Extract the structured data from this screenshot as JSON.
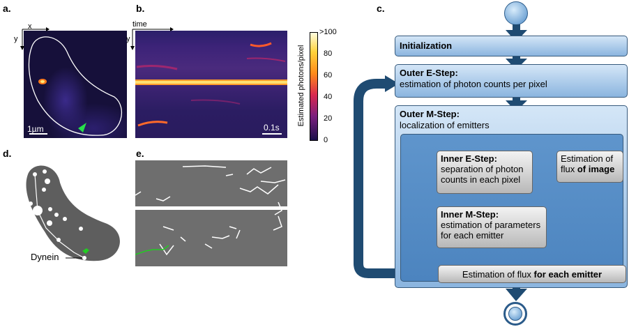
{
  "panels": {
    "a": {
      "label": "a.",
      "axis_x": "x",
      "axis_y": "y",
      "scale": "1µm"
    },
    "b": {
      "label": "b.",
      "axis_time": "time",
      "axis_y": "y",
      "scale": "0.1s"
    },
    "c": {
      "label": "c."
    },
    "d": {
      "label": "d.",
      "annotation": "Dynein"
    },
    "e": {
      "label": "e."
    }
  },
  "colorbar": {
    "label": "Estimated photons/pixel",
    "ticks": [
      ">100",
      "80",
      "60",
      "40",
      "20",
      "0"
    ]
  },
  "flowchart": {
    "init": "Initialization",
    "outer_e_title": "Outer E-Step:",
    "outer_e_text": "estimation of photon counts per pixel",
    "outer_m_title": "Outer M-Step:",
    "outer_m_text": "localization of emitters",
    "inner_e_title": "Inner E-Step:",
    "inner_e_text": "separation of photon counts in each pixel",
    "flux_image_prefix": "Estimation of flux",
    "flux_image_bold": "of image",
    "inner_m_title": "Inner M-Step:",
    "inner_m_text": "estimation of parameters for each emitter",
    "flux_emitter_prefix": "Estimation of flux",
    "flux_emitter_bold": "for each emitter"
  },
  "colors": {
    "flow_arrow": "#1f4b72",
    "inner_arrow": "#8a8a8a",
    "green_marker": "#22cc22"
  }
}
